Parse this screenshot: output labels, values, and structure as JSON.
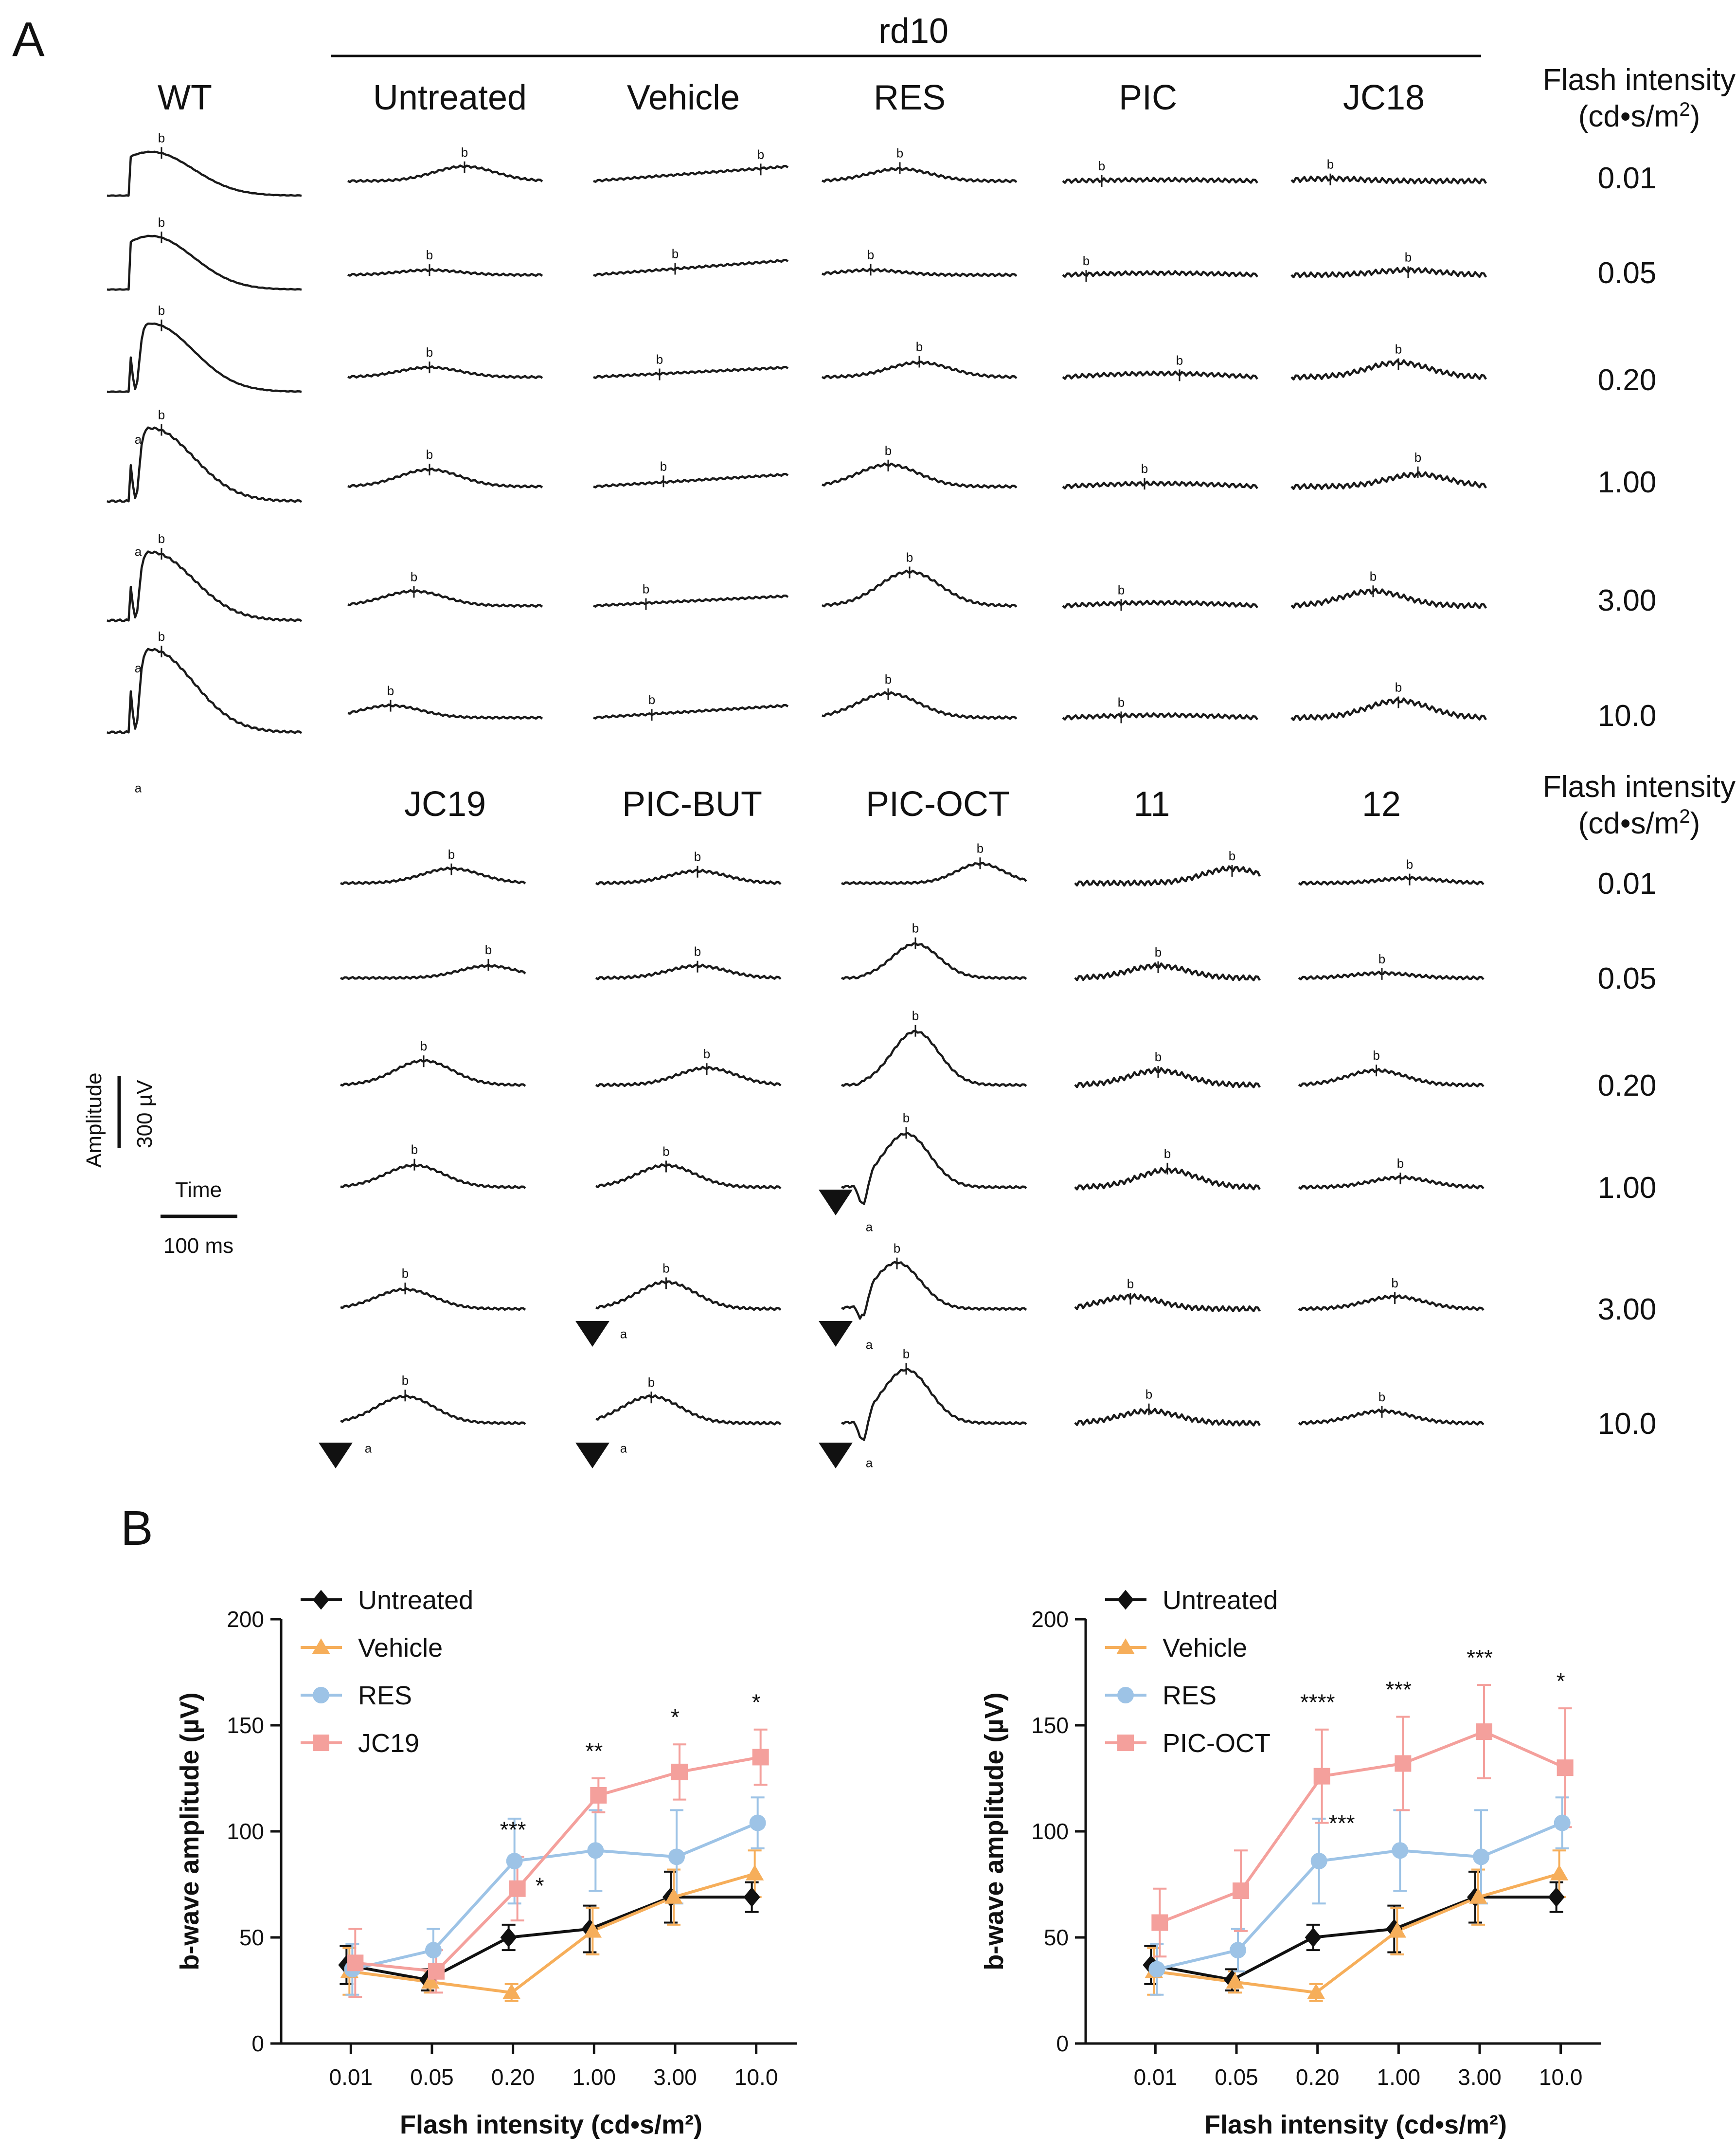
{
  "figure": {
    "panel_a_label": "A",
    "panel_b_label": "B",
    "rd10_label": "rd10",
    "flash_header": [
      "Flash intensity",
      "(cd•s/m",
      "2",
      ")"
    ],
    "row1_columns": [
      "WT",
      "Untreated",
      "Vehicle",
      "RES",
      "PIC",
      "JC18"
    ],
    "row2_columns": [
      "JC19",
      "PIC-BUT",
      "PIC-OCT",
      "11",
      "12"
    ],
    "intensity_labels": [
      "0.01",
      "0.05",
      "0.20",
      "1.00",
      "3.00",
      "10.0"
    ],
    "wave_labels": {
      "a": "a",
      "b": "b"
    },
    "scale": {
      "amplitude_label": "Amplitude",
      "amplitude_value": "300 µV",
      "time_label": "Time",
      "time_value": "100 ms"
    }
  },
  "chart_data": [
    {
      "type": "line",
      "title": "",
      "xlabel": "Flash intensity (cd•s/m²)",
      "ylabel": "b-wave amplitude (µV)",
      "categories": [
        "0.01",
        "0.05",
        "0.20",
        "1.00",
        "3.00",
        "10.0"
      ],
      "ylim": [
        0,
        200
      ],
      "yticks": [
        "0",
        "50",
        "100",
        "150",
        "200"
      ],
      "legend_position": "top-left",
      "series": [
        {
          "name": "Untreated",
          "color": "#111111",
          "marker": "diamond",
          "values": [
            37,
            30,
            50,
            54,
            69,
            69
          ],
          "errors": [
            9,
            5,
            6,
            11,
            12,
            7
          ]
        },
        {
          "name": "Vehicle",
          "color": "#f6ae5a",
          "marker": "triangle",
          "values": [
            34,
            29,
            24,
            53,
            69,
            80
          ],
          "errors": [
            11,
            5,
            4,
            11,
            13,
            11
          ]
        },
        {
          "name": "RES",
          "color": "#9dc3e6",
          "marker": "circle",
          "values": [
            35,
            44,
            86,
            91,
            88,
            104
          ],
          "errors": [
            12,
            10,
            20,
            19,
            22,
            12
          ]
        },
        {
          "name": "JC19",
          "color": "#f4a09c",
          "marker": "square",
          "values": [
            38,
            34,
            73,
            117,
            128,
            135
          ],
          "errors": [
            16,
            10,
            15,
            8,
            13,
            13
          ]
        }
      ],
      "annotations": [
        {
          "index": 2,
          "text": "***",
          "anchor": "top"
        },
        {
          "index": 2,
          "text": "*",
          "anchor": "lower"
        },
        {
          "index": 3,
          "text": "**",
          "anchor": "top"
        },
        {
          "index": 4,
          "text": "*",
          "anchor": "top"
        },
        {
          "index": 5,
          "text": "*",
          "anchor": "top"
        }
      ]
    },
    {
      "type": "line",
      "title": "",
      "xlabel": "Flash intensity (cd•s/m²)",
      "ylabel": "b-wave amplitude (µV)",
      "categories": [
        "0.01",
        "0.05",
        "0.20",
        "1.00",
        "3.00",
        "10.0"
      ],
      "ylim": [
        0,
        200
      ],
      "yticks": [
        "0",
        "50",
        "100",
        "150",
        "200"
      ],
      "legend_position": "top-left",
      "series": [
        {
          "name": "Untreated",
          "color": "#111111",
          "marker": "diamond",
          "values": [
            37,
            30,
            50,
            54,
            69,
            69
          ],
          "errors": [
            9,
            5,
            6,
            11,
            12,
            7
          ]
        },
        {
          "name": "Vehicle",
          "color": "#f6ae5a",
          "marker": "triangle",
          "values": [
            34,
            29,
            24,
            53,
            69,
            80
          ],
          "errors": [
            11,
            5,
            4,
            11,
            13,
            11
          ]
        },
        {
          "name": "RES",
          "color": "#9dc3e6",
          "marker": "circle",
          "values": [
            35,
            44,
            86,
            91,
            88,
            104
          ],
          "errors": [
            12,
            10,
            20,
            19,
            22,
            12
          ]
        },
        {
          "name": "PIC-OCT",
          "color": "#f4a09c",
          "marker": "square",
          "values": [
            57,
            72,
            126,
            132,
            147,
            130
          ],
          "errors": [
            16,
            19,
            22,
            22,
            22,
            28
          ]
        }
      ],
      "annotations": [
        {
          "index": 2,
          "text": "****",
          "anchor": "top"
        },
        {
          "index": 2,
          "text": "***",
          "anchor": "lower"
        },
        {
          "index": 3,
          "text": "***",
          "anchor": "top"
        },
        {
          "index": 4,
          "text": "***",
          "anchor": "top"
        },
        {
          "index": 5,
          "text": "*",
          "anchor": "top"
        }
      ]
    }
  ]
}
